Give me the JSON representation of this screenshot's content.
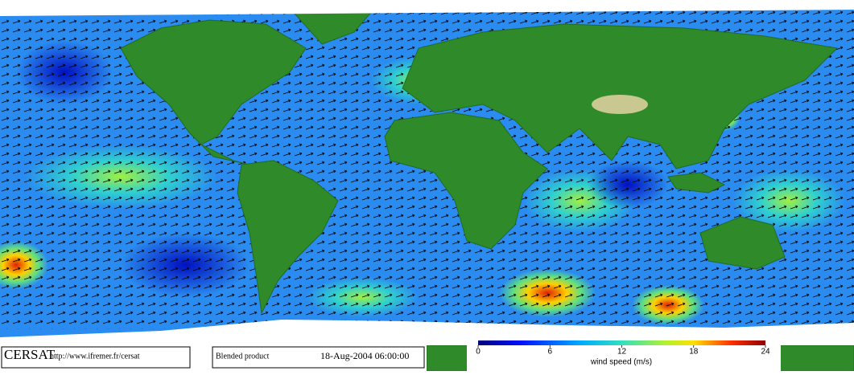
{
  "footer": {
    "logo": "CERSAT",
    "url": "http://www.ifremer.fr/cersat",
    "product": "Blended product",
    "date": "18-Aug-2004 06:00:00"
  },
  "colorbar": {
    "label": "wind speed (m/s)",
    "range": [
      0,
      24
    ],
    "ticks": [
      0,
      6,
      12,
      18,
      24
    ]
  }
}
